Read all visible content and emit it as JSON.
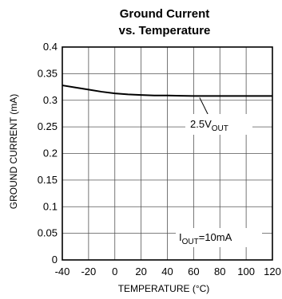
{
  "chart_data": {
    "type": "line",
    "title_line1": "Ground Current",
    "title_line2": "vs. Temperature",
    "xlabel": "TEMPERATURE (°C)",
    "ylabel": "GROUND CURRENT (mA)",
    "xlim": [
      -40,
      120
    ],
    "ylim": [
      0,
      0.4
    ],
    "x_ticks": [
      -40,
      -20,
      0,
      20,
      40,
      60,
      80,
      100,
      120
    ],
    "x_tick_labels": [
      "-40",
      "-20",
      "0",
      "20",
      "40",
      "60",
      "80",
      "100",
      "120"
    ],
    "y_ticks": [
      0,
      0.05,
      0.1,
      0.15,
      0.2,
      0.25,
      0.3,
      0.35,
      0.4
    ],
    "y_tick_labels": [
      "0",
      "0.05",
      "0.1",
      "0.15",
      "0.2",
      "0.25",
      "0.3",
      "0.35",
      "0.4"
    ],
    "grid": true,
    "series": [
      {
        "x": [
          -40,
          -30,
          -20,
          -10,
          0,
          10,
          20,
          30,
          40,
          50,
          60,
          70,
          80,
          90,
          100,
          110,
          120
        ],
        "values": [
          0.328,
          0.324,
          0.32,
          0.316,
          0.313,
          0.311,
          0.31,
          0.309,
          0.309,
          0.3085,
          0.308,
          0.308,
          0.308,
          0.308,
          0.308,
          0.308,
          0.308
        ]
      }
    ],
    "annotations": {
      "series_label": {
        "main": "2.5V",
        "sub": "OUT",
        "points_to": [
          67,
          0.308
        ]
      },
      "condition": {
        "main": "I",
        "sub": "OUT",
        "rest": "=10mA"
      }
    },
    "line_color": "#000000",
    "grid_color": "#555555"
  }
}
